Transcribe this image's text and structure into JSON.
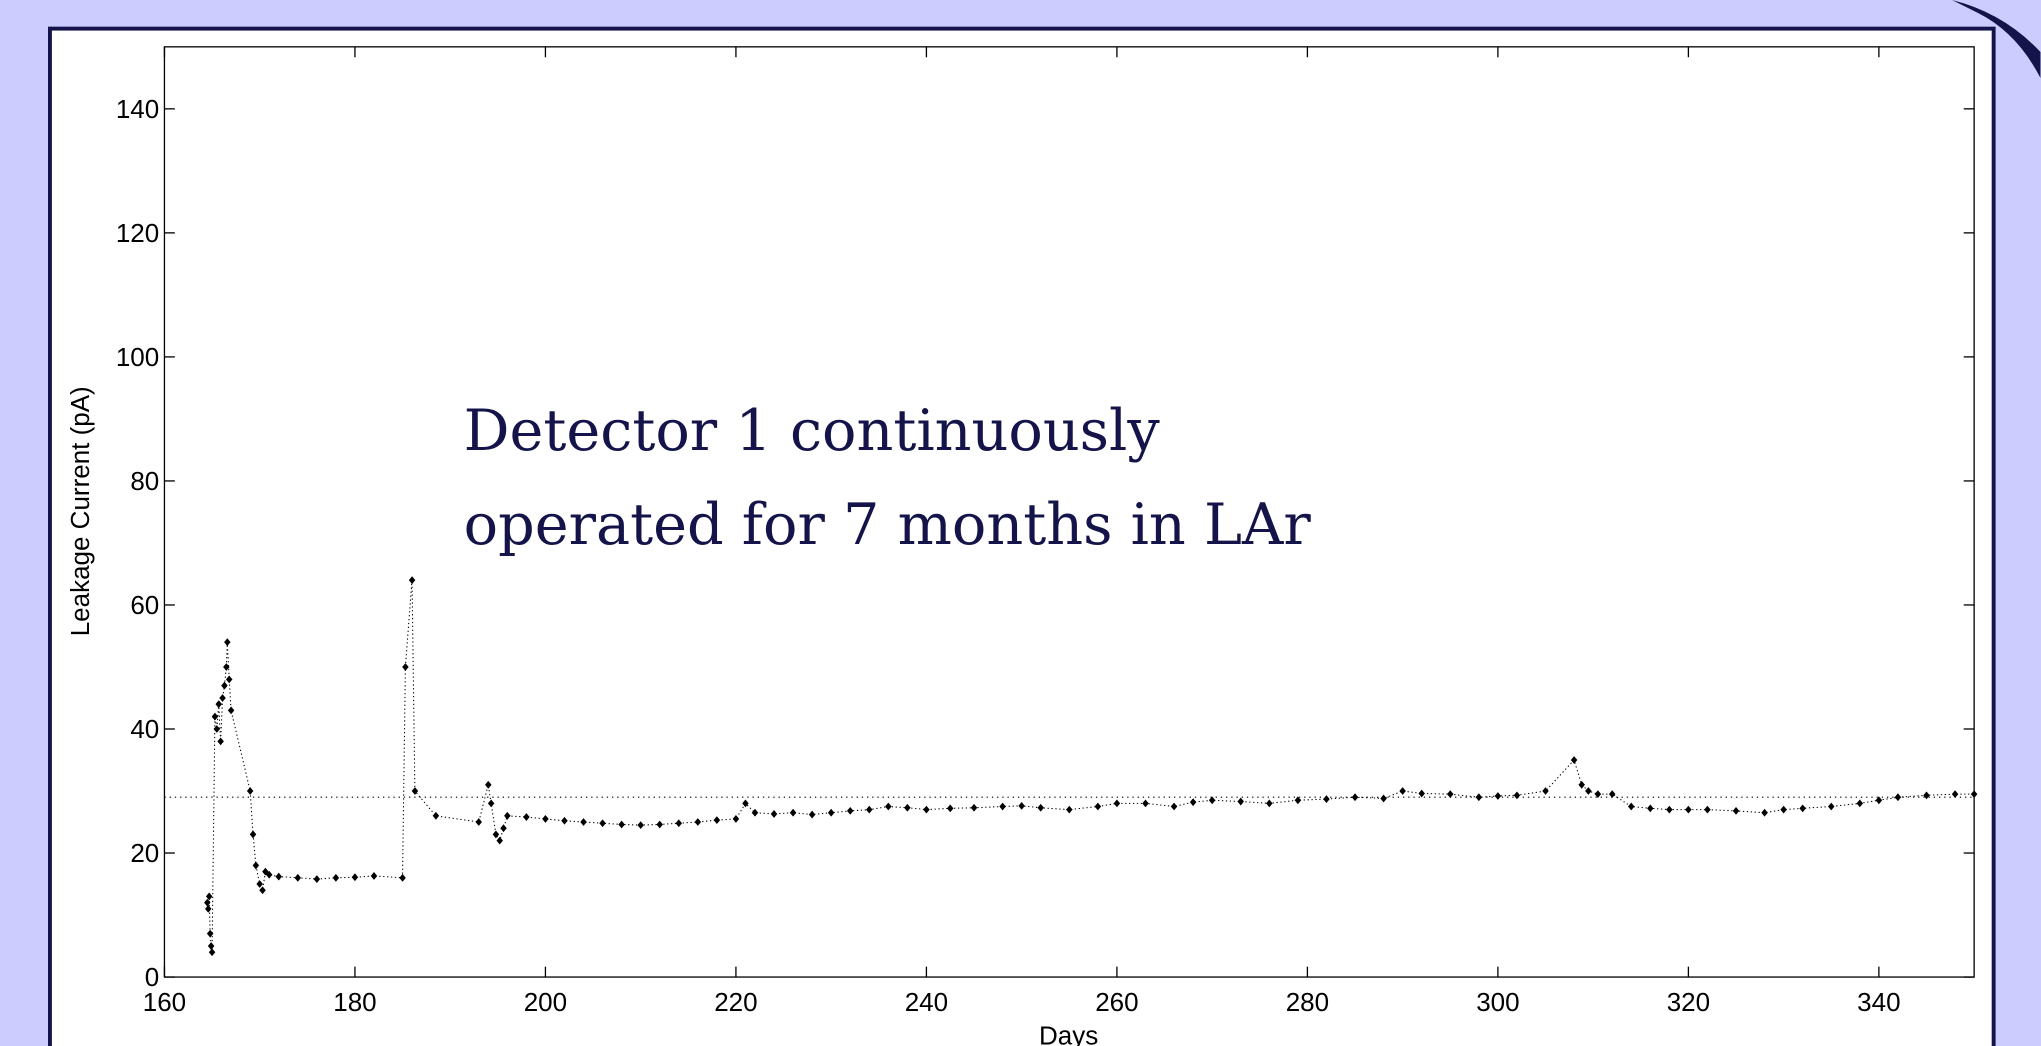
{
  "chart_data": {
    "type": "scatter",
    "x_label": "Days",
    "y_label": "Leakage Current (pA)",
    "annotation": [
      "Detector 1 continuously",
      "operated for 7 months in LAr"
    ],
    "xlim": [
      160,
      350
    ],
    "ylim": [
      0,
      150
    ],
    "xticks": [
      160,
      180,
      200,
      220,
      240,
      260,
      280,
      300,
      320,
      340
    ],
    "yticks": [
      0,
      20,
      40,
      60,
      80,
      100,
      120,
      140
    ],
    "grid": false,
    "color": "#000000",
    "reference_line": 29,
    "x": [
      164.5,
      164.6,
      164.7,
      164.8,
      164.9,
      165.0,
      165.3,
      165.5,
      165.7,
      165.9,
      166.1,
      166.3,
      166.5,
      166.6,
      166.8,
      167.0,
      169.0,
      169.3,
      169.6,
      170.0,
      170.3,
      170.6,
      171.0,
      172.0,
      174.0,
      176.0,
      178.0,
      180.0,
      182.0,
      185.0,
      185.3,
      186.0,
      186.3,
      188.5,
      193.0,
      194.0,
      194.3,
      194.8,
      195.2,
      195.6,
      196.0,
      198.0,
      200.0,
      202.0,
      204.0,
      206.0,
      208.0,
      210.0,
      212.0,
      214.0,
      216.0,
      218.0,
      220.0,
      221.0,
      222.0,
      224.0,
      226.0,
      228.0,
      230.0,
      232.0,
      234.0,
      236.0,
      238.0,
      240.0,
      242.5,
      245.0,
      248.0,
      250.0,
      252.0,
      255.0,
      258.0,
      260.0,
      263.0,
      266.0,
      268.0,
      270.0,
      273.0,
      276.0,
      279.0,
      282.0,
      285.0,
      288.0,
      290.0,
      292.0,
      295.0,
      298.0,
      300.0,
      302.0,
      305.0,
      308.0,
      308.8,
      309.5,
      310.5,
      312.0,
      314.0,
      316.0,
      318.0,
      320.0,
      322.0,
      325.0,
      328.0,
      330.0,
      332.0,
      335.0,
      338.0,
      340.0,
      342.0,
      345.0,
      348.0,
      350.0
    ],
    "y": [
      12,
      11,
      13,
      7,
      5,
      4,
      42,
      40,
      44,
      38,
      45,
      47,
      50,
      54,
      48,
      43,
      30,
      23,
      18,
      15,
      14,
      17,
      16.5,
      16.2,
      16,
      15.8,
      16,
      16.1,
      16.3,
      16,
      50,
      64,
      30,
      26,
      25,
      31,
      28,
      23,
      22,
      24,
      26,
      25.8,
      25.5,
      25.2,
      25,
      24.8,
      24.6,
      24.5,
      24.6,
      24.8,
      25,
      25.3,
      25.5,
      28,
      26.5,
      26.3,
      26.5,
      26.2,
      26.5,
      26.8,
      27,
      27.5,
      27.3,
      27,
      27.2,
      27.3,
      27.5,
      27.6,
      27.3,
      27,
      27.5,
      28,
      28,
      27.5,
      28.2,
      28.5,
      28.3,
      28,
      28.5,
      28.7,
      29,
      28.8,
      30,
      29.6,
      29.5,
      29,
      29.2,
      29.3,
      30,
      35,
      31,
      30,
      29.5,
      29.5,
      27.5,
      27.2,
      27,
      27,
      27,
      26.8,
      26.5,
      27,
      27.2,
      27.5,
      28,
      28.5,
      29,
      29.3,
      29.5,
      29.5
    ]
  }
}
